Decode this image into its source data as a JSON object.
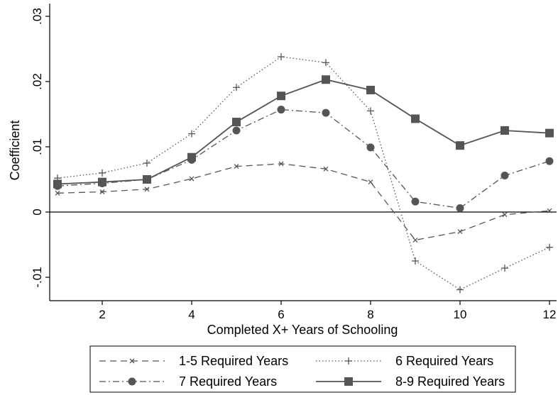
{
  "chart_data": {
    "type": "line",
    "title": "",
    "xlabel": "Completed X+ Years of Schooling",
    "ylabel": "Coefficient",
    "x": [
      1,
      2,
      3,
      4,
      5,
      6,
      7,
      8,
      9,
      10,
      11,
      12
    ],
    "xticks": [
      2,
      4,
      6,
      8,
      10,
      12
    ],
    "xtick_labels": [
      "2",
      "4",
      "6",
      "8",
      "10",
      "12"
    ],
    "xlim": [
      1,
      12
    ],
    "yticks": [
      -0.01,
      0,
      0.01,
      0.02,
      0.03
    ],
    "ytick_labels": [
      "-.01",
      "0",
      ".01",
      ".02",
      ".03"
    ],
    "ylim": [
      -0.013,
      0.03
    ],
    "grid": false,
    "reference_line": 0,
    "legend_position": "bottom",
    "series": [
      {
        "name": "1-5 Required Years",
        "values": [
          0.0029,
          0.0031,
          0.0035,
          0.0051,
          0.007,
          0.0074,
          0.0066,
          0.0046,
          -0.0043,
          -0.003,
          -0.0004,
          0.0002
        ],
        "color": "#555555",
        "dash": "dashed",
        "marker": "x"
      },
      {
        "name": "6 Required Years",
        "values": [
          0.0052,
          0.006,
          0.0075,
          0.012,
          0.0191,
          0.0238,
          0.0229,
          0.0155,
          -0.0075,
          -0.0119,
          -0.0086,
          -0.0054
        ],
        "color": "#555555",
        "dash": "dotted",
        "marker": "plus"
      },
      {
        "name": "7 Required Years",
        "values": [
          0.004,
          0.0044,
          0.005,
          0.008,
          0.0125,
          0.0157,
          0.0152,
          0.0099,
          0.0016,
          0.0006,
          0.0056,
          0.0078
        ],
        "color": "#555555",
        "dash": "dashdot",
        "marker": "circle"
      },
      {
        "name": "8-9 Required Years",
        "values": [
          0.0043,
          0.0046,
          0.005,
          0.0084,
          0.0138,
          0.0178,
          0.0203,
          0.0187,
          0.0143,
          0.0102,
          0.0125,
          0.0121
        ],
        "color": "#555555",
        "dash": "solid",
        "marker": "square"
      }
    ]
  }
}
